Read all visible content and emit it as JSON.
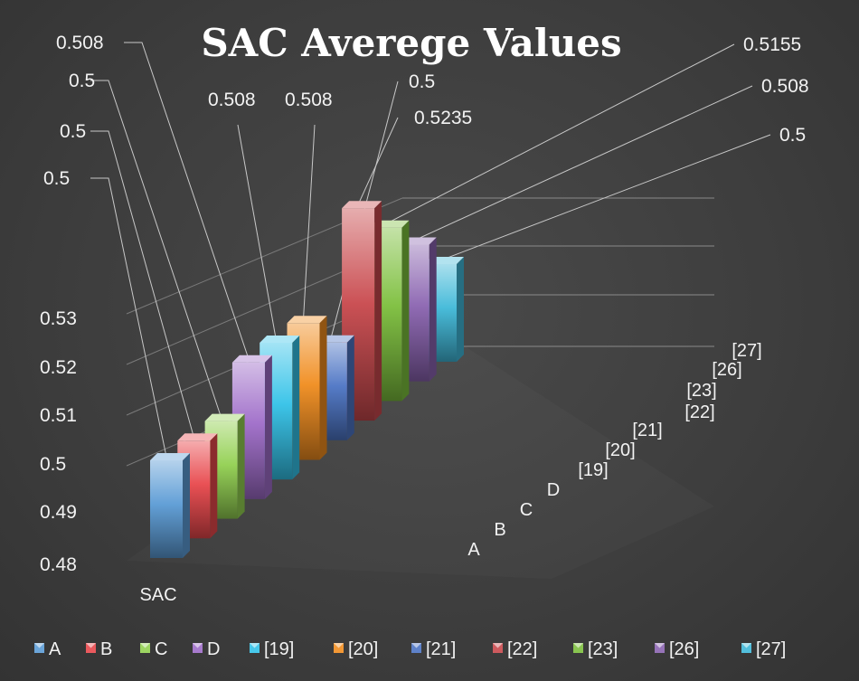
{
  "chart_data": {
    "type": "bar",
    "style": "3d-column",
    "title": "SAC Averege Values",
    "xlabel": "",
    "ylabel": "",
    "group": "SAC",
    "ylim": [
      0.48,
      0.53
    ],
    "yticks": [
      "0.48",
      "0.49",
      "0.5",
      "0.51",
      "0.52",
      "0.53"
    ],
    "grid": true,
    "legend_position": "bottom",
    "series": [
      {
        "name": "A",
        "value": 0.5,
        "label": "0.5",
        "color": "#5b9bd5"
      },
      {
        "name": "B",
        "value": 0.5,
        "label": "0.5",
        "color": "#e8474b"
      },
      {
        "name": "C",
        "value": 0.5,
        "label": "0.5",
        "color": "#92d050"
      },
      {
        "name": "D",
        "value": 0.508,
        "label": "0.508",
        "color": "#9e6cc8"
      },
      {
        "name": "[19]",
        "value": 0.508,
        "label": "0.508",
        "color": "#33c2e8"
      },
      {
        "name": "[20]",
        "value": 0.508,
        "label": "0.508",
        "color": "#f08c1e"
      },
      {
        "name": "[21]",
        "value": 0.5,
        "label": "0.5",
        "color": "#4c74c4"
      },
      {
        "name": "[22]",
        "value": 0.5235,
        "label": "0.5235",
        "color": "#c8484c"
      },
      {
        "name": "[23]",
        "value": 0.5155,
        "label": "0.5155",
        "color": "#7cbf3c"
      },
      {
        "name": "[26]",
        "value": 0.508,
        "label": "0.508",
        "color": "#8a63b0"
      },
      {
        "name": "[27]",
        "value": 0.5,
        "label": "0.5",
        "color": "#3fb8d8"
      }
    ]
  }
}
